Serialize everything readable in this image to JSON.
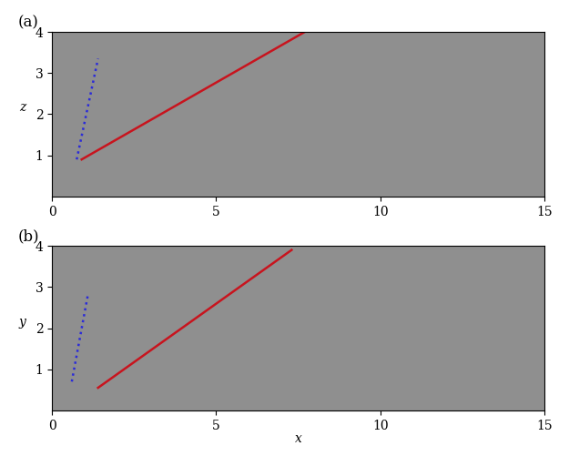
{
  "chart_data": [
    {
      "type": "line",
      "title": "(a)",
      "x_label": "",
      "y_label": "z",
      "xlim": [
        0,
        15
      ],
      "ylim": [
        0,
        4
      ],
      "xticks": [
        0,
        5,
        10,
        15
      ],
      "yticks": [
        1,
        2,
        3,
        4
      ],
      "series": [
        {
          "color": "#2b2bd9",
          "line_style": "dotted",
          "x": [
            0.75,
            1.4
          ],
          "values": [
            0.9,
            3.35
          ]
        },
        {
          "color": "#c8141e",
          "line_style": "solid",
          "x": [
            0.9,
            7.7
          ],
          "values": [
            0.9,
            4.0
          ]
        }
      ]
    },
    {
      "type": "line",
      "title": "(b)",
      "x_label": "x",
      "y_label": "y",
      "xlim": [
        0,
        15
      ],
      "ylim": [
        0,
        4
      ],
      "xticks": [
        0,
        5,
        10,
        15
      ],
      "yticks": [
        1,
        2,
        3,
        4
      ],
      "series": [
        {
          "color": "#2b2bd9",
          "line_style": "dotted",
          "x": [
            0.6,
            1.1
          ],
          "values": [
            0.7,
            2.85
          ]
        },
        {
          "color": "#c8141e",
          "line_style": "solid",
          "x": [
            1.4,
            7.3
          ],
          "values": [
            0.55,
            3.9
          ]
        }
      ]
    }
  ]
}
